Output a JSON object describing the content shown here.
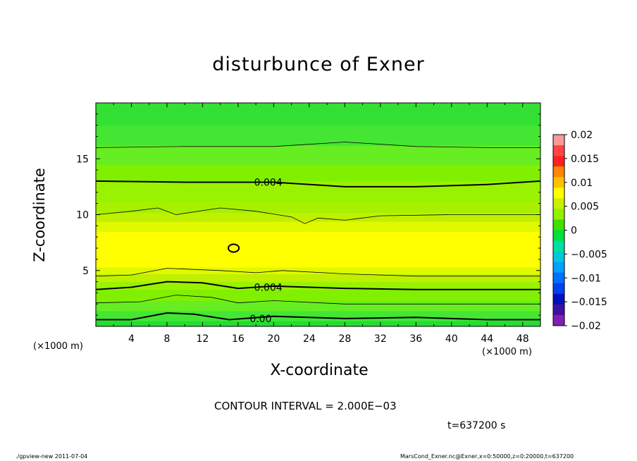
{
  "chart_data": {
    "type": "heatmap",
    "title": "disturbunce of Exner",
    "xlabel": "X-coordinate",
    "ylabel": "Z-coordinate",
    "x_unit": "(×1000 m)",
    "z_unit": "(×1000 m)",
    "xlim": [
      0,
      50
    ],
    "ylim": [
      0,
      20
    ],
    "x_ticks": [
      "4",
      "8",
      "12",
      "16",
      "20",
      "24",
      "28",
      "32",
      "36",
      "40",
      "44",
      "48"
    ],
    "y_ticks": [
      "5",
      "10",
      "15"
    ],
    "colorbar": {
      "range": [
        -0.02,
        0.02
      ],
      "tick_labels": [
        "0.02",
        "0.015",
        "0.01",
        "0.005",
        "0",
        "−0.005",
        "−0.01",
        "−0.015",
        "−0.02"
      ],
      "colors": [
        "#ff9999",
        "#ff4444",
        "#ff2222",
        "#ff8800",
        "#ffc000",
        "#ffff00",
        "#c8f000",
        "#90f000",
        "#40e000",
        "#00e040",
        "#00e0a0",
        "#00c8d8",
        "#00a0ff",
        "#0070ff",
        "#0040f0",
        "#0010c0",
        "#4010a0",
        "#8020b0"
      ]
    },
    "background_bands": [
      {
        "z": [
          0,
          0.5
        ],
        "value": 0.0,
        "color": "#22dd33"
      },
      {
        "z": [
          0.5,
          1.4
        ],
        "value": 0.001,
        "color": "#44e633"
      },
      {
        "z": [
          1.4,
          2.3
        ],
        "value": 0.002,
        "color": "#66ee22"
      },
      {
        "z": [
          2.3,
          3.3
        ],
        "value": 0.003,
        "color": "#80f000"
      },
      {
        "z": [
          3.3,
          4.0
        ],
        "value": 0.004,
        "color": "#99f200"
      },
      {
        "z": [
          4.0,
          4.7
        ],
        "value": 0.005,
        "color": "#bff000"
      },
      {
        "z": [
          4.7,
          5.3
        ],
        "value": 0.0055,
        "color": "#e0f800"
      },
      {
        "z": [
          5.3,
          8.5
        ],
        "value": 0.006,
        "color": "#ffff00"
      },
      {
        "z": [
          8.5,
          9.4
        ],
        "value": 0.0055,
        "color": "#e0f800"
      },
      {
        "z": [
          9.4,
          10.2
        ],
        "value": 0.005,
        "color": "#bff000"
      },
      {
        "z": [
          10.2,
          11.2
        ],
        "value": 0.0045,
        "color": "#a6f000"
      },
      {
        "z": [
          11.2,
          13.0
        ],
        "value": 0.004,
        "color": "#99f200"
      },
      {
        "z": [
          13.0,
          14.5
        ],
        "value": 0.003,
        "color": "#80f000"
      },
      {
        "z": [
          14.5,
          16.2
        ],
        "value": 0.002,
        "color": "#66ee22"
      },
      {
        "z": [
          16.2,
          18.0
        ],
        "value": 0.001,
        "color": "#44e633"
      },
      {
        "z": [
          18.0,
          20.0
        ],
        "value": 0.0,
        "color": "#33e033"
      }
    ],
    "contours": [
      {
        "name": "contour-z16",
        "level": 0.002,
        "bold": false,
        "points": [
          [
            0,
            16.0
          ],
          [
            10,
            16.1
          ],
          [
            20,
            16.1
          ],
          [
            28,
            16.5
          ],
          [
            36,
            16.1
          ],
          [
            44,
            16.0
          ],
          [
            50,
            16.0
          ]
        ]
      },
      {
        "name": "contour-z13",
        "level": 0.004,
        "bold": true,
        "points": [
          [
            0,
            13.0
          ],
          [
            10,
            12.9
          ],
          [
            20,
            12.9
          ],
          [
            28,
            12.5
          ],
          [
            36,
            12.5
          ],
          [
            44,
            12.7
          ],
          [
            50,
            13.0
          ]
        ]
      },
      {
        "name": "contour-z10",
        "level": 0.005,
        "bold": false,
        "points": [
          [
            0,
            10.0
          ],
          [
            4,
            10.3
          ],
          [
            7,
            10.6
          ],
          [
            9,
            10.0
          ],
          [
            14,
            10.6
          ],
          [
            18,
            10.3
          ],
          [
            22,
            9.8
          ],
          [
            23.5,
            9.2
          ],
          [
            25,
            9.7
          ],
          [
            28,
            9.5
          ],
          [
            32,
            9.9
          ],
          [
            40,
            10.0
          ],
          [
            50,
            10.0
          ]
        ]
      },
      {
        "name": "contour-z5",
        "level": 0.005,
        "bold": false,
        "points": [
          [
            0,
            4.5
          ],
          [
            4,
            4.6
          ],
          [
            8,
            5.2
          ],
          [
            14,
            5.0
          ],
          [
            18,
            4.8
          ],
          [
            21,
            5.0
          ],
          [
            28,
            4.7
          ],
          [
            36,
            4.5
          ],
          [
            50,
            4.5
          ]
        ]
      },
      {
        "name": "contour-z3.8",
        "level": 0.004,
        "bold": true,
        "points": [
          [
            0,
            3.3
          ],
          [
            4,
            3.5
          ],
          [
            8,
            4.0
          ],
          [
            12,
            3.9
          ],
          [
            16,
            3.4
          ],
          [
            20,
            3.6
          ],
          [
            28,
            3.4
          ],
          [
            36,
            3.3
          ],
          [
            50,
            3.3
          ]
        ]
      },
      {
        "name": "contour-z3",
        "level": 0.003,
        "bold": false,
        "points": [
          [
            0,
            2.1
          ],
          [
            5,
            2.2
          ],
          [
            9,
            2.8
          ],
          [
            13,
            2.6
          ],
          [
            16,
            2.1
          ],
          [
            20,
            2.3
          ],
          [
            28,
            2.0
          ],
          [
            50,
            2.0
          ]
        ]
      },
      {
        "name": "contour-z1",
        "level": 0.002,
        "bold": true,
        "points": [
          [
            0,
            0.6
          ],
          [
            4,
            0.6
          ],
          [
            8,
            1.2
          ],
          [
            11,
            1.1
          ],
          [
            15,
            0.6
          ],
          [
            20,
            0.9
          ],
          [
            28,
            0.7
          ],
          [
            36,
            0.8
          ],
          [
            44,
            0.6
          ],
          [
            50,
            0.6
          ]
        ]
      }
    ],
    "contour_labels": [
      {
        "name": "contour-label-upper",
        "text": "0.004",
        "x": 17.8,
        "z": 12.9
      },
      {
        "name": "contour-label-lower",
        "text": "0.004",
        "x": 17.8,
        "z": 3.5
      },
      {
        "name": "contour-label-bottom",
        "text": "0.00",
        "x": 17.3,
        "z": 0.7
      }
    ],
    "closed_contour": {
      "x": 15.5,
      "z": 7.0,
      "rx": 0.6,
      "rz": 0.35,
      "level": 0.006
    },
    "grid": false
  },
  "contour_interval": "CONTOUR INTERVAL = 2.000E−03",
  "time_label": "t=637200 s",
  "footer_left": "./gpview-new  2011-07-04",
  "footer_right": "MarsCond_Exner.nc@Exner,x=0:50000,z=0:20000,t=637200"
}
